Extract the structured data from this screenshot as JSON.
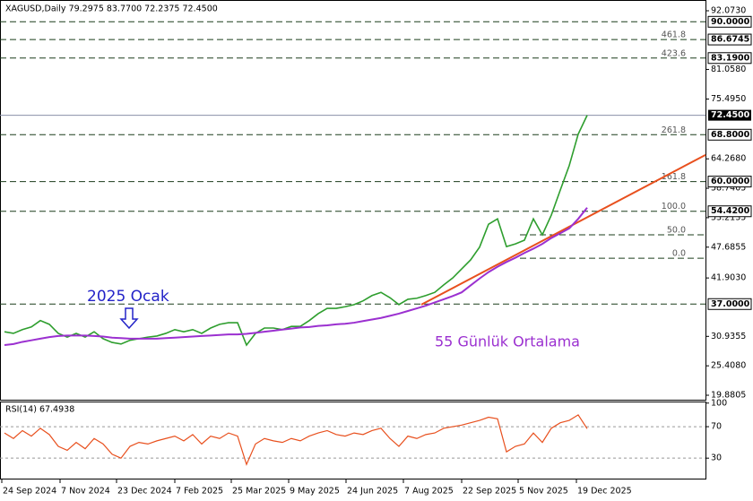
{
  "chart_data": [
    {
      "type": "line",
      "title": "XAGUSD,Daily  79.2975 83.7700 72.2375 72.4500",
      "ylim": [
        19.04,
        94.09
      ],
      "yticks": [
        {
          "value": 92.073,
          "label": "92.0730"
        },
        {
          "value": 81.058,
          "label": "81.0580"
        },
        {
          "value": 75.495,
          "label": "75.4950"
        },
        {
          "value": 64.268,
          "label": "64.2680"
        },
        58.7405,
        53.2135,
        47.6855,
        {
          "value": 41.903,
          "label": "41.9030"
        },
        30.9355,
        {
          "value": 25.408,
          "label": "25.4080"
        },
        19.8805
      ],
      "x_labels": [
        "24 Sep 2024",
        "7 Nov 2024",
        "23 Dec 2024",
        "7 Feb 2025",
        "25 Mar 2025",
        "9 May 2025",
        "24 Jun 2025",
        "7 Aug 2025",
        "22 Sep 2025",
        "5 Nov 2025",
        "19 Dec 2025"
      ],
      "series": [
        {
          "color": "#2e9e2e",
          "values": [
            31.8,
            31.5,
            32.2,
            32.7,
            33.9,
            33.2,
            31.5,
            30.8,
            31.5,
            30.8,
            31.8,
            30.5,
            29.8,
            29.5,
            30.2,
            30.5,
            30.8,
            31.0,
            31.5,
            32.2,
            31.8,
            32.2,
            31.5,
            32.5,
            33.2,
            33.5,
            33.5,
            29.3,
            31.5,
            32.5,
            32.5,
            32.2,
            32.8,
            32.8,
            33.9,
            35.2,
            36.2,
            36.2,
            36.5,
            36.9,
            37.6,
            38.6,
            39.2,
            38.2,
            36.9,
            37.9,
            38.1,
            38.6,
            39.2,
            40.6,
            41.9,
            43.6,
            45.3,
            47.7,
            52.0,
            53.0,
            47.8,
            48.3,
            49.0,
            53.0,
            50.0,
            53.7,
            58.4,
            63.0,
            68.9,
            72.45
          ]
        },
        {
          "name": "55 Günlük Ortalama",
          "color": "#9b30d0",
          "values": [
            29.3,
            29.5,
            29.9,
            30.2,
            30.5,
            30.8,
            31.0,
            31.1,
            31.1,
            31.1,
            31.0,
            30.9,
            30.7,
            30.6,
            30.5,
            30.5,
            30.5,
            30.5,
            30.6,
            30.7,
            30.8,
            30.9,
            31.0,
            31.1,
            31.2,
            31.3,
            31.3,
            31.4,
            31.6,
            31.8,
            32.0,
            32.2,
            32.4,
            32.6,
            32.7,
            32.9,
            33.0,
            33.2,
            33.3,
            33.5,
            33.8,
            34.1,
            34.4,
            34.8,
            35.2,
            35.7,
            36.2,
            36.7,
            37.3,
            37.9,
            38.5,
            39.2,
            40.5,
            41.8,
            43.0,
            44.0,
            44.9,
            45.7,
            46.6,
            47.4,
            48.3,
            49.4,
            50.3,
            51.2,
            53.0,
            55.1
          ]
        }
      ],
      "trendline": {
        "color": "#e8501e",
        "values": [
          36.9,
          65.0
        ]
      },
      "levels": [
        {
          "value": 90,
          "label": "90.0000"
        },
        {
          "value": 86.6745,
          "label": "86.6745",
          "fib": "461.8"
        },
        {
          "value": 83.19,
          "label": "83.1900",
          "fib": "423.6"
        },
        {
          "value": 68.8,
          "label": "68.8000",
          "fib": "261.8"
        },
        {
          "value": 60,
          "label": "60.0000",
          "fib": "161.8"
        },
        {
          "value": 54.42,
          "label": "54.4200",
          "fib": "100.0"
        },
        {
          "value": 50.0,
          "fib": "50.0"
        },
        {
          "value": 45.6,
          "fib": "0.0"
        },
        {
          "value": 37,
          "label": "37.0000"
        }
      ],
      "last_price": {
        "value": 72.45,
        "label": "72.4500"
      },
      "annotations": [
        {
          "text": "2025 Ocak",
          "color": "#2323c8"
        }
      ]
    },
    {
      "type": "line",
      "title": "RSI(14) 67.4938",
      "ylim": [
        4,
        102
      ],
      "yticks": [
        100,
        70,
        30
      ],
      "series": [
        {
          "color": "#e8501e",
          "values": [
            62,
            55,
            65,
            58,
            68,
            60,
            45,
            40,
            50,
            42,
            55,
            48,
            35,
            30,
            45,
            50,
            48,
            52,
            55,
            58,
            52,
            60,
            48,
            58,
            55,
            62,
            58,
            22,
            48,
            55,
            52,
            50,
            55,
            52,
            58,
            62,
            65,
            60,
            58,
            62,
            60,
            65,
            68,
            55,
            45,
            58,
            55,
            60,
            62,
            68,
            70,
            72,
            75,
            78,
            82,
            80,
            38,
            45,
            48,
            62,
            50,
            68,
            75,
            78,
            85,
            67.4938
          ]
        }
      ]
    }
  ]
}
